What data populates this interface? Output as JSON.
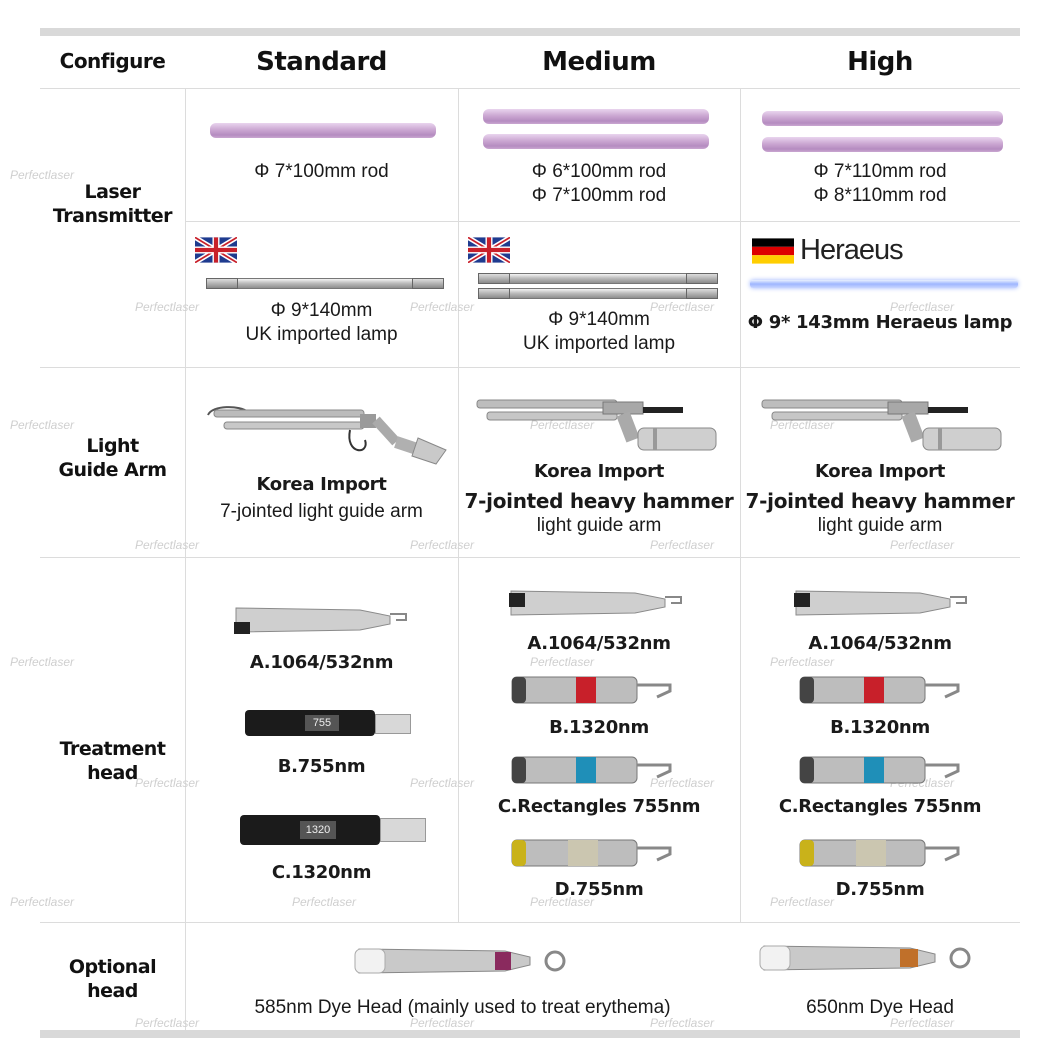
{
  "header": {
    "col0": "Configure",
    "col1": "Standard",
    "col2": "Medium",
    "col3": "High"
  },
  "rows": {
    "laser_transmitter": {
      "label_line1": "Laser",
      "label_line2": "Transmitter",
      "rods": {
        "standard": [
          "Φ 7*100mm rod"
        ],
        "medium": [
          "Φ 6*100mm rod",
          "Φ 7*100mm rod"
        ],
        "high": [
          "Φ 7*110mm rod",
          "Φ 8*110mm rod"
        ]
      },
      "lamps": {
        "standard_line1": "Φ 9*140mm",
        "standard_line2": "UK imported lamp",
        "medium_line1": "Φ 9*140mm",
        "medium_line2": "UK imported lamp",
        "high_brand": "Heraeus",
        "high_line1": "Φ 9* 143mm Heraeus lamp"
      }
    },
    "light_guide_arm": {
      "label_line1": "Light",
      "label_line2": "Guide Arm",
      "standard_line1": "Korea Import",
      "standard_line2": "7-jointed light guide arm",
      "medium_line1": "Korea Import",
      "medium_line2": "7-jointed heavy hammer",
      "medium_line3": "light guide arm",
      "high_line1": "Korea Import",
      "high_line2": "7-jointed heavy hammer",
      "high_line3": "light guide arm"
    },
    "treatment_head": {
      "label_line1": "Treatment",
      "label_line2": "head",
      "standard": [
        "A.1064/532nm",
        "B.755nm",
        "C.1320nm"
      ],
      "standard_badges": [
        "755",
        "1320"
      ],
      "medium": [
        "A.1064/532nm",
        "B.1320nm",
        "C.Rectangles 755nm",
        "D.755nm"
      ],
      "high": [
        "A.1064/532nm",
        "B.1320nm",
        "C.Rectangles 755nm",
        "D.755nm"
      ]
    },
    "optional_head": {
      "label_line1": "Optional",
      "label_line2": "head",
      "left": "585nm Dye Head (mainly used to treat erythema)",
      "right": "650nm Dye Head"
    }
  },
  "watermark": "Perfectlaser",
  "colors": {
    "rod": "#c9a5d0",
    "band_red": "#c8202a",
    "band_blue": "#1f8fb8",
    "band_yellow": "#c9b21a",
    "band_purple": "#8a2a5e",
    "band_orange": "#c0702a",
    "grid": "#dcdcdc"
  }
}
